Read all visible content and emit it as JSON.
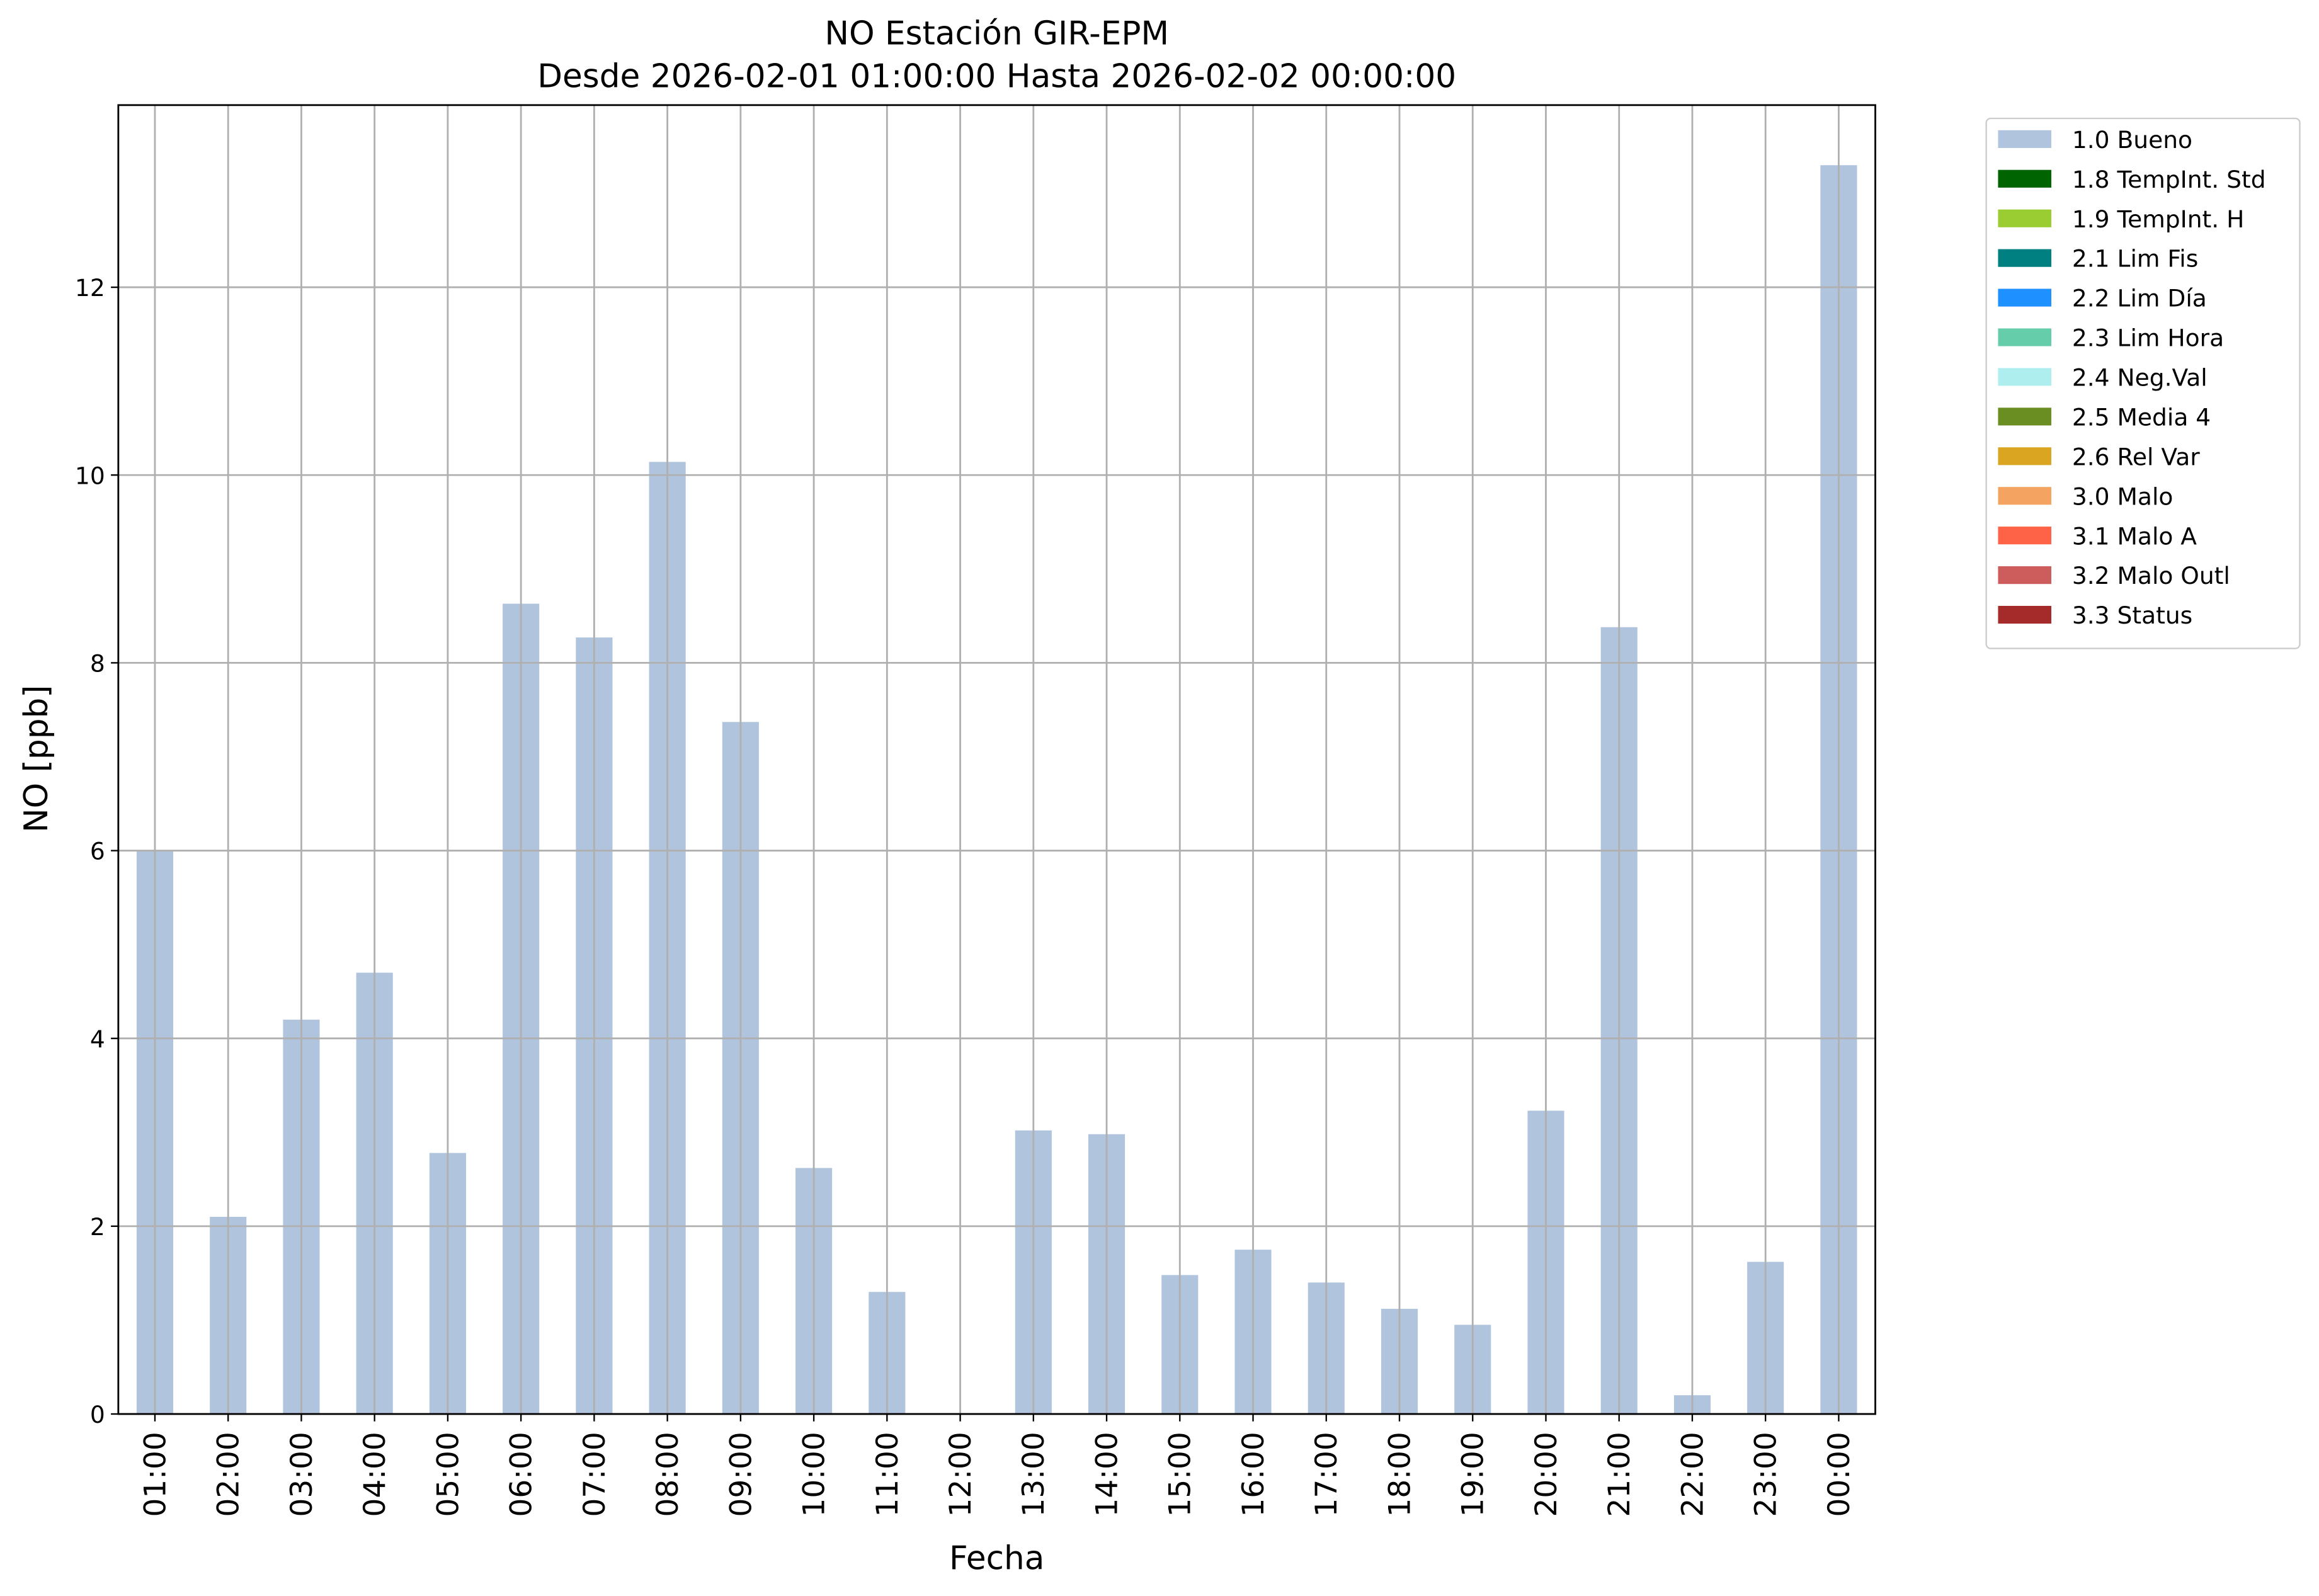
{
  "chart_data": {
    "type": "stacked_bar",
    "title": "NO Estación GIR-EPM",
    "subtitle": "Desde 2026-02-01 01:00:00 Hasta 2026-02-02 00:00:00",
    "x_label": "Fecha",
    "y_label": "NO [ppb]",
    "categories": [
      "01:00",
      "02:00",
      "03:00",
      "04:00",
      "05:00",
      "06:00",
      "07:00",
      "08:00",
      "09:00",
      "10:00",
      "11:00",
      "12:00",
      "13:00",
      "14:00",
      "15:00",
      "16:00",
      "17:00",
      "18:00",
      "19:00",
      "20:00",
      "21:00",
      "22:00",
      "23:00",
      "00:00"
    ],
    "series": [
      {
        "name": "1.0 Bueno",
        "color": "#b0c4de",
        "values": [
          6.0,
          2.1,
          4.2,
          4.7,
          2.78,
          8.63,
          8.27,
          10.14,
          7.37,
          2.62,
          1.3,
          null,
          3.02,
          2.98,
          1.48,
          1.75,
          1.4,
          1.12,
          0.95,
          3.23,
          8.38,
          0.2,
          1.62,
          13.3
        ]
      },
      {
        "name": "1.8 TempInt. Std",
        "color": "#006400",
        "values": [
          null,
          null,
          null,
          null,
          null,
          null,
          null,
          null,
          null,
          null,
          null,
          null,
          null,
          null,
          null,
          null,
          null,
          null,
          null,
          null,
          null,
          null,
          null,
          null
        ]
      },
      {
        "name": "1.9 TempInt. H",
        "color": "#9acd32",
        "values": [
          null,
          null,
          null,
          null,
          null,
          null,
          null,
          null,
          null,
          null,
          null,
          null,
          null,
          null,
          null,
          null,
          null,
          null,
          null,
          null,
          null,
          null,
          null,
          null
        ]
      },
      {
        "name": "2.1 Lim Fis",
        "color": "#008080",
        "values": [
          null,
          null,
          null,
          null,
          null,
          null,
          null,
          null,
          null,
          null,
          null,
          null,
          null,
          null,
          null,
          null,
          null,
          null,
          null,
          null,
          null,
          null,
          null,
          null
        ]
      },
      {
        "name": "2.2 Lim Día",
        "color": "#1e90ff",
        "values": [
          null,
          null,
          null,
          null,
          null,
          null,
          null,
          null,
          null,
          null,
          null,
          null,
          null,
          null,
          null,
          null,
          null,
          null,
          null,
          null,
          null,
          null,
          null,
          null
        ]
      },
      {
        "name": "2.3 Lim Hora",
        "color": "#66cdaa",
        "values": [
          null,
          null,
          null,
          null,
          null,
          null,
          null,
          null,
          null,
          null,
          null,
          null,
          null,
          null,
          null,
          null,
          null,
          null,
          null,
          null,
          null,
          null,
          null,
          null
        ]
      },
      {
        "name": "2.4 Neg.Val",
        "color": "#afeeee",
        "values": [
          null,
          null,
          null,
          null,
          null,
          null,
          null,
          null,
          null,
          null,
          null,
          null,
          null,
          null,
          null,
          null,
          null,
          null,
          null,
          null,
          null,
          null,
          null,
          null
        ]
      },
      {
        "name": "2.5 Media 4",
        "color": "#6b8e23",
        "values": [
          null,
          null,
          null,
          null,
          null,
          null,
          null,
          null,
          null,
          null,
          null,
          null,
          null,
          null,
          null,
          null,
          null,
          null,
          null,
          null,
          null,
          null,
          null,
          null
        ]
      },
      {
        "name": "2.6 Rel Var",
        "color": "#daa520",
        "values": [
          null,
          null,
          null,
          null,
          null,
          null,
          null,
          null,
          null,
          null,
          null,
          null,
          null,
          null,
          null,
          null,
          null,
          null,
          null,
          null,
          null,
          null,
          null,
          null
        ]
      },
      {
        "name": "3.0 Malo",
        "color": "#f4a460",
        "values": [
          null,
          null,
          null,
          null,
          null,
          null,
          null,
          null,
          null,
          null,
          null,
          null,
          null,
          null,
          null,
          null,
          null,
          null,
          null,
          null,
          null,
          null,
          null,
          null
        ]
      },
      {
        "name": "3.1 Malo A",
        "color": "#ff6347",
        "values": [
          null,
          null,
          null,
          null,
          null,
          null,
          null,
          null,
          null,
          null,
          null,
          null,
          null,
          null,
          null,
          null,
          null,
          null,
          null,
          null,
          null,
          null,
          null,
          null
        ]
      },
      {
        "name": "3.2 Malo Outl",
        "color": "#cd5c5c",
        "values": [
          null,
          null,
          null,
          null,
          null,
          null,
          null,
          null,
          null,
          null,
          null,
          null,
          null,
          null,
          null,
          null,
          null,
          null,
          null,
          null,
          null,
          null,
          null,
          null
        ]
      },
      {
        "name": "3.3 Status",
        "color": "#a52a2a",
        "values": [
          null,
          null,
          null,
          null,
          null,
          null,
          null,
          null,
          null,
          null,
          null,
          null,
          null,
          null,
          null,
          null,
          null,
          null,
          null,
          null,
          null,
          null,
          null,
          null
        ]
      }
    ],
    "ylim": [
      0,
      13.94
    ],
    "yticks": [
      0,
      2,
      4,
      6,
      8,
      10,
      12
    ],
    "grid": true,
    "legend": "outside-upper-right"
  }
}
